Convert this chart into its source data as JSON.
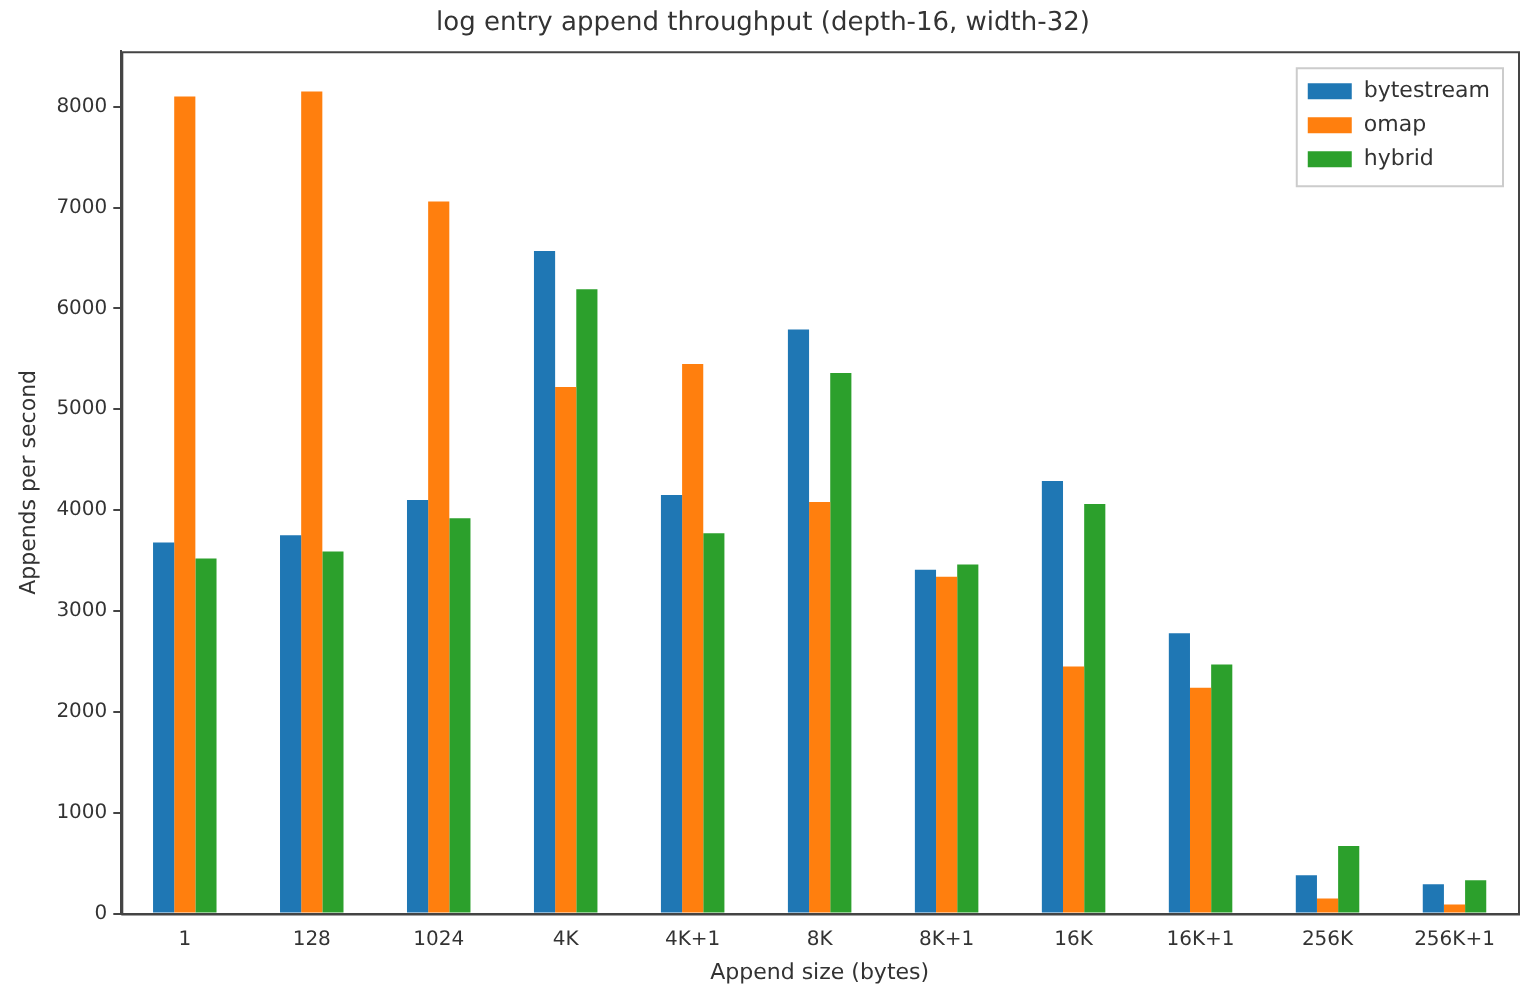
{
  "chart_data": {
    "type": "bar",
    "title": "log entry append throughput (depth-16, width-32)",
    "xlabel": "Append size (bytes)",
    "ylabel": "Appends per second",
    "categories": [
      "1",
      "128",
      "1024",
      "4K",
      "4K+1",
      "8K",
      "8K+1",
      "16K",
      "16K+1",
      "256K",
      "256K+1"
    ],
    "series": [
      {
        "name": "bytestream",
        "color": "#1f77b4",
        "values": [
          3680,
          3750,
          4100,
          6570,
          4150,
          5790,
          3410,
          4290,
          2780,
          380,
          290
        ]
      },
      {
        "name": "omap",
        "color": "#ff7f0e",
        "values": [
          8100,
          8150,
          7060,
          5220,
          5450,
          4080,
          3340,
          2450,
          2240,
          150,
          90
        ]
      },
      {
        "name": "hybrid",
        "color": "#2ca02c",
        "values": [
          3520,
          3590,
          3920,
          6190,
          3770,
          5360,
          3460,
          4060,
          2470,
          670,
          330
        ]
      }
    ],
    "ylim": [
      0,
      8550
    ],
    "yticks": [
      0,
      1000,
      2000,
      3000,
      4000,
      5000,
      6000,
      7000,
      8000
    ],
    "grid": false,
    "legend": "top right"
  }
}
